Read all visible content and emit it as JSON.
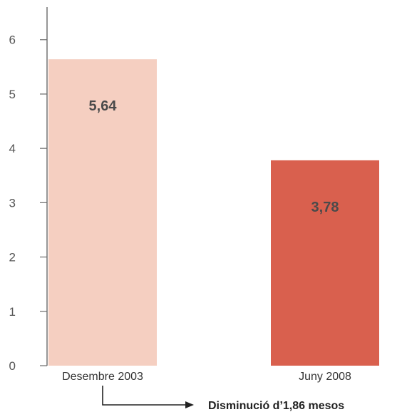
{
  "chart_data": {
    "type": "bar",
    "categories": [
      "Desembre 2003",
      "Juny 2008"
    ],
    "values": [
      5.64,
      3.78
    ],
    "value_labels": [
      "5,64",
      "3,78"
    ],
    "colors": [
      "#f5cfc1",
      "#d9604e"
    ],
    "ylim": [
      0,
      6.6
    ],
    "yticks": [
      0,
      1,
      2,
      3,
      4,
      5,
      6
    ],
    "title": "",
    "xlabel": "",
    "ylabel": "",
    "grid": false
  },
  "annotation": {
    "text": "Disminució d’1,86 mesos"
  }
}
